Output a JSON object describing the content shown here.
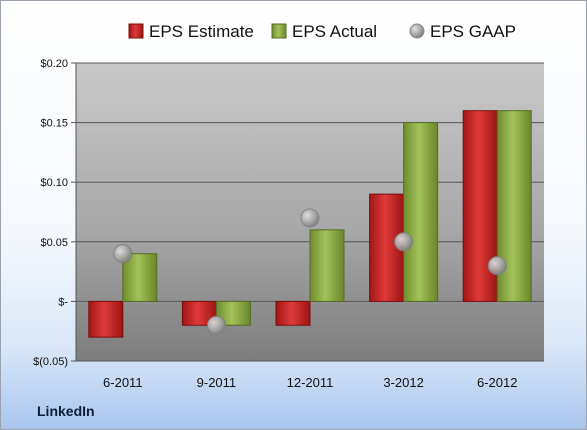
{
  "company": "LinkedIn",
  "chart_data": {
    "type": "bar",
    "categories": [
      "6-2011",
      "9-2011",
      "12-2011",
      "3-2012",
      "6-2012"
    ],
    "series": [
      {
        "name": "EPS Estimate",
        "kind": "bar",
        "color": "#d42a2a",
        "values": [
          -0.03,
          -0.02,
          -0.02,
          0.09,
          0.16
        ]
      },
      {
        "name": "EPS Actual",
        "kind": "bar",
        "color": "#93b249",
        "values": [
          0.04,
          -0.02,
          0.06,
          0.15,
          0.16
        ]
      },
      {
        "name": "EPS GAAP",
        "kind": "marker",
        "color": "#a9a9a9",
        "values": [
          0.04,
          -0.02,
          0.07,
          0.05,
          0.03
        ]
      }
    ],
    "ylim": [
      -0.05,
      0.2
    ],
    "yticks": [
      -0.05,
      0,
      0.05,
      0.1,
      0.15,
      0.2
    ],
    "ytick_labels": [
      "$(0.05)",
      "$-",
      "$0.05",
      "$0.10",
      "$0.15",
      "$0.20"
    ],
    "grid": true,
    "legend_position": "top"
  }
}
